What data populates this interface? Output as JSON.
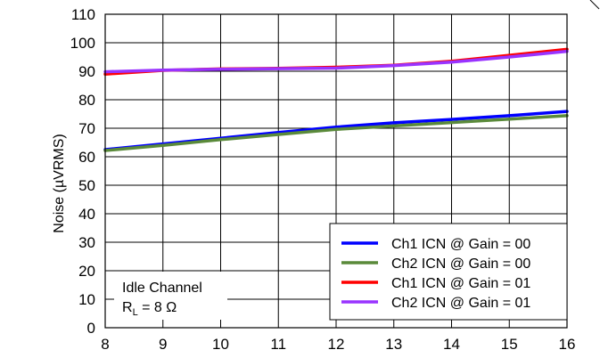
{
  "chart_data": {
    "type": "line",
    "title": "",
    "xlabel": "",
    "ylabel": "Noise  (µVRMS)",
    "xlim": [
      8,
      16
    ],
    "ylim": [
      0,
      110
    ],
    "x_ticks": [
      8,
      9,
      10,
      11,
      12,
      13,
      14,
      15,
      16
    ],
    "y_ticks": [
      0,
      10,
      20,
      30,
      40,
      50,
      60,
      70,
      80,
      90,
      100,
      110
    ],
    "grid": true,
    "legend_position": "bottom-right",
    "series": [
      {
        "name": "Ch1 ICN @ Gain = 00",
        "color": "#0000ff",
        "x": [
          8,
          9,
          10,
          11,
          12,
          13,
          14,
          15,
          16
        ],
        "y": [
          62.5,
          64.5,
          66.5,
          68.5,
          70.4,
          71.9,
          73.1,
          74.4,
          75.9
        ]
      },
      {
        "name": "Ch2 ICN @ Gain = 00",
        "color": "#5a8a3a",
        "x": [
          8,
          9,
          10,
          11,
          12,
          13,
          14,
          15,
          16
        ],
        "y": [
          62.2,
          64.0,
          66.0,
          67.8,
          69.6,
          70.8,
          72.0,
          73.2,
          74.4
        ]
      },
      {
        "name": "Ch1 ICN @ Gain = 01",
        "color": "#ff0000",
        "x": [
          8,
          9,
          10,
          11,
          12,
          13,
          14,
          15,
          16
        ],
        "y": [
          89.0,
          90.3,
          90.8,
          91.0,
          91.4,
          92.1,
          93.5,
          95.6,
          97.7
        ]
      },
      {
        "name": "Ch2 ICN @ Gain = 01",
        "color": "#9933ff",
        "x": [
          8,
          9,
          10,
          11,
          12,
          13,
          14,
          15,
          16
        ],
        "y": [
          89.8,
          90.4,
          90.7,
          90.9,
          91.1,
          92.0,
          93.2,
          95.0,
          97.0
        ]
      }
    ],
    "annotation": {
      "line1": "Idle Channel",
      "line2_base": "R",
      "line2_sub": "L",
      "line2_rest": " = 8 Ω"
    }
  }
}
